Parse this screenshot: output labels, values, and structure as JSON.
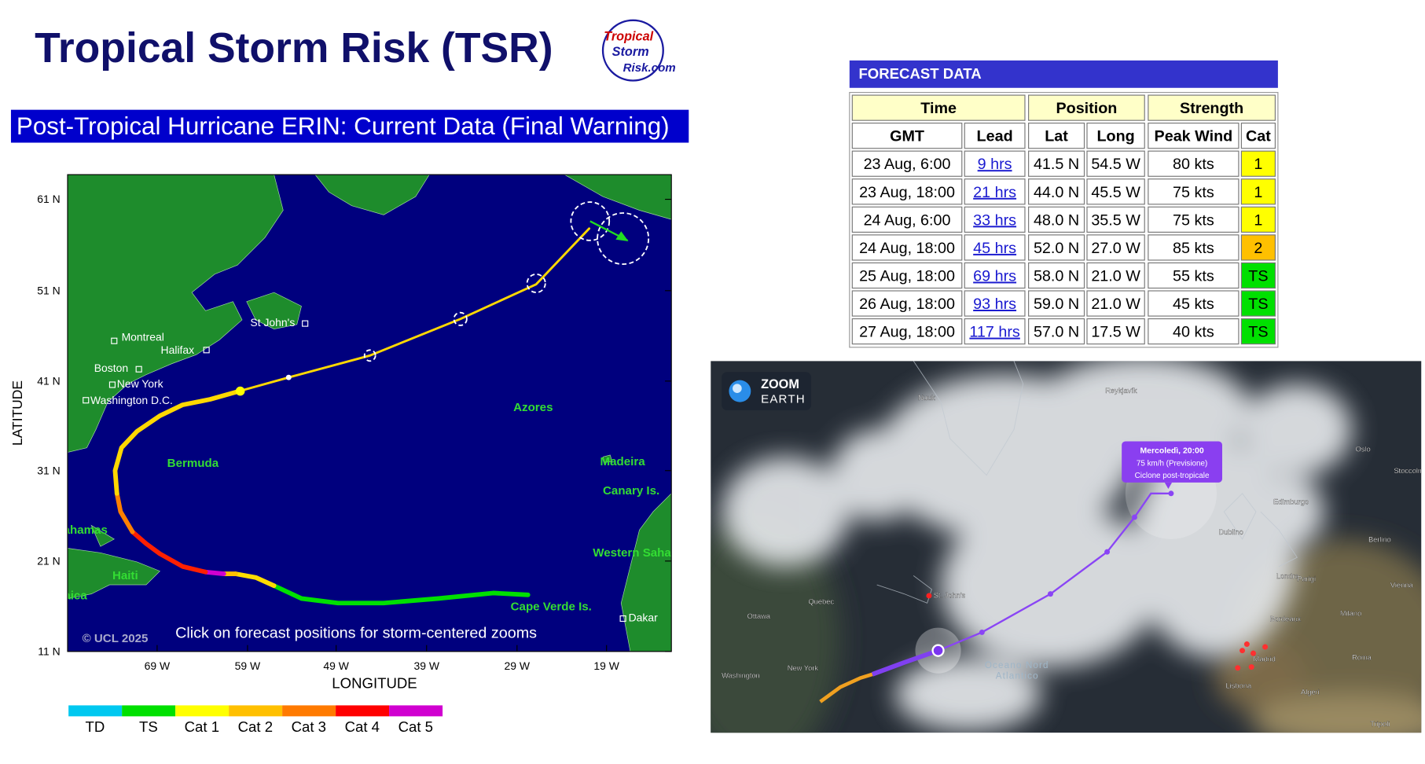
{
  "header": {
    "title": "Tropical Storm Risk (TSR)",
    "logo": [
      "Tropical",
      "Storm",
      "Risk.com"
    ]
  },
  "map": {
    "subtitle": "Post-Tropical Hurricane ERIN: Current Data (Final Warning)",
    "lat_ticks": [
      "61 N",
      "51 N",
      "41 N",
      "31 N",
      "21 N",
      "11 N"
    ],
    "lon_ticks": [
      "69 W",
      "59 W",
      "49 W",
      "39 W",
      "29 W",
      "19 W"
    ],
    "y_label": "LATITUDE",
    "x_label": "LONGITUDE",
    "places": [
      "Montreal",
      "Halifax",
      "St John's",
      "Boston",
      "New York",
      "Washington D.C.",
      "Bermuda",
      "Azores",
      "Madeira",
      "Canary Is.",
      "Bahamas",
      "Haiti",
      "Jamaica",
      "Western Sahara",
      "Cape Verde Is.",
      "Dakar"
    ],
    "credit": "© UCL 2025",
    "note": "Click on forecast positions for storm-centered zooms",
    "legend": [
      {
        "name": "TD",
        "color": "#00c8f0"
      },
      {
        "name": "TS",
        "color": "#00e000"
      },
      {
        "name": "Cat 1",
        "color": "#ffff00"
      },
      {
        "name": "Cat 2",
        "color": "#ffc000"
      },
      {
        "name": "Cat 3",
        "color": "#ff7a00"
      },
      {
        "name": "Cat 4",
        "color": "#ff0000"
      },
      {
        "name": "Cat 5",
        "color": "#d000d0"
      }
    ]
  },
  "forecast": {
    "heading": "FORECAST DATA",
    "groups": [
      "Time",
      "Position",
      "Strength"
    ],
    "columns": [
      "GMT",
      "Lead",
      "Lat",
      "Long",
      "Peak Wind",
      "Cat"
    ],
    "rows": [
      {
        "cells": [
          "23 Aug, 6:00",
          "9 hrs",
          "41.5 N",
          "54.5 W",
          "80 kts",
          "1"
        ],
        "color": "#ffff00"
      },
      {
        "cells": [
          "23 Aug, 18:00",
          "21 hrs",
          "44.0 N",
          "45.5 W",
          "75 kts",
          "1"
        ],
        "color": "#ffff00"
      },
      {
        "cells": [
          "24 Aug, 6:00",
          "33 hrs",
          "48.0 N",
          "35.5 W",
          "75 kts",
          "1"
        ],
        "color": "#ffff00"
      },
      {
        "cells": [
          "24 Aug, 18:00",
          "45 hrs",
          "52.0 N",
          "27.0 W",
          "85 kts",
          "2"
        ],
        "color": "#ffc000"
      },
      {
        "cells": [
          "25 Aug, 18:00",
          "69 hrs",
          "58.0 N",
          "21.0 W",
          "55 kts",
          "TS"
        ],
        "color": "#00e000"
      },
      {
        "cells": [
          "26 Aug, 18:00",
          "93 hrs",
          "59.0 N",
          "21.0 W",
          "45 kts",
          "TS"
        ],
        "color": "#00e000"
      },
      {
        "cells": [
          "27 Aug, 18:00",
          "117 hrs",
          "57.0 N",
          "17.5 W",
          "40 kts",
          "TS"
        ],
        "color": "#00e000"
      }
    ]
  },
  "satellite": {
    "brand": [
      "ZOOM",
      "EARTH"
    ],
    "popup": [
      "Mercoledì, 20:00",
      "75 km/h (Previsione)",
      "Ciclone post-tropicale"
    ],
    "places": [
      "Nuuk",
      "Reykjavík",
      "Oslo",
      "Stoccolma",
      "Edimburgo",
      "Dublino",
      "Londra",
      "Berlino",
      "Parigi",
      "Vienna",
      "Milano",
      "Bordeaux",
      "Roma",
      "Madrid",
      "Lisbona",
      "Algeri",
      "Tripoli",
      "Québec",
      "Ottawa",
      "New York",
      "Washington",
      "St. John's",
      "Oceano Nord",
      "Atlantico"
    ]
  }
}
